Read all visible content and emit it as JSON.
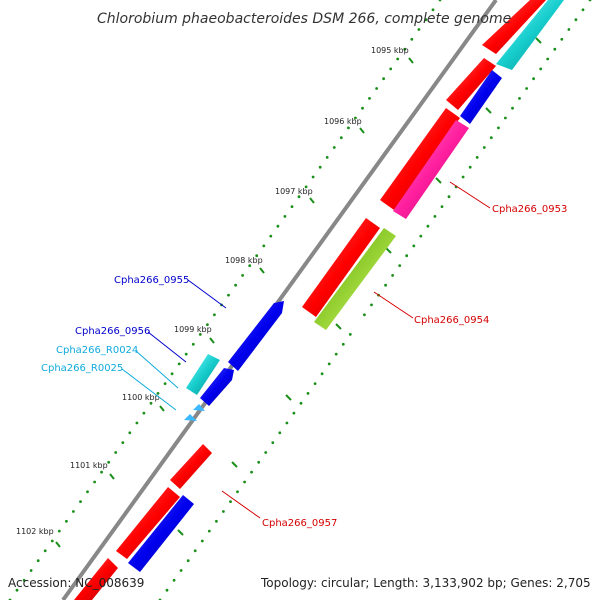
{
  "title": "Chlorobium phaeobacteroides DSM 266, complete genome",
  "footer": {
    "accession": "Accession: NC_008639",
    "summary": "Topology: circular; Length: 3,133,902 bp; Genes: 2,705"
  },
  "ticks": [
    "1095 kbp",
    "1096 kbp",
    "1097 kbp",
    "1098 kbp",
    "1099 kbp",
    "1100 kbp",
    "1101 kbp",
    "1102 kbp"
  ],
  "genes": {
    "g0953": "Cpha266_0953",
    "g0954": "Cpha266_0954",
    "g0955": "Cpha266_0955",
    "g0956": "Cpha266_0956",
    "gR0024": "Cpha266_R0024",
    "gR0025": "Cpha266_R0025",
    "g0957": "Cpha266_0957"
  },
  "colors": {
    "backbone": "#8a8a8a",
    "cds_plus": "#ff0000",
    "cds_minus": "#0000ee",
    "magenta": "#ff1f9f",
    "cyan": "#16cccc",
    "rna": "#3bb8ff",
    "olive": "#6f9e22",
    "lime": "#b8ff3a",
    "dots": "#1a8f1a",
    "label_red": "#d40000",
    "label_blue": "#0000cc",
    "label_cyan": "#11aadd"
  }
}
